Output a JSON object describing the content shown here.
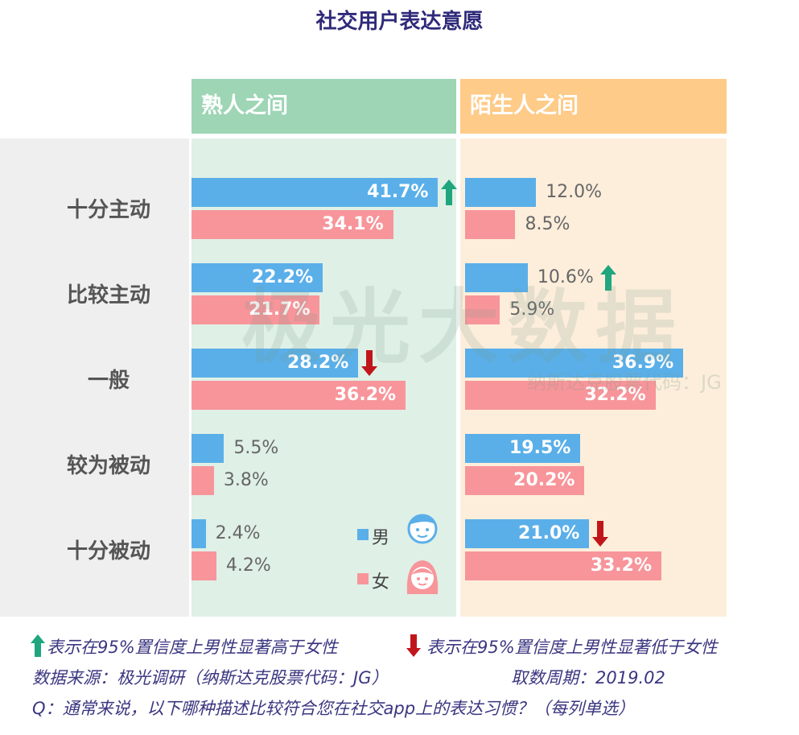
{
  "chart_data": {
    "type": "bar",
    "title": "社交用户表达意愿",
    "categories": [
      "十分主动",
      "比较主动",
      "一般",
      "较为被动",
      "十分被动"
    ],
    "panels": [
      {
        "title": "熟人之间",
        "series": [
          {
            "name": "男",
            "values": [
              41.7,
              22.2,
              28.2,
              5.5,
              2.4
            ]
          },
          {
            "name": "女",
            "values": [
              34.1,
              21.7,
              36.2,
              3.8,
              4.2
            ]
          }
        ],
        "significance": [
          "up",
          null,
          "down",
          null,
          null
        ]
      },
      {
        "title": "陌生人之间",
        "series": [
          {
            "name": "男",
            "values": [
              12.0,
              10.6,
              36.9,
              19.5,
              21.0
            ]
          },
          {
            "name": "女",
            "values": [
              8.5,
              5.9,
              32.2,
              20.2,
              33.2
            ]
          }
        ],
        "significance": [
          null,
          "up",
          null,
          null,
          "down"
        ]
      }
    ],
    "legend": [
      "男",
      "女"
    ],
    "legend_placement": "bottom-right of first panel",
    "colors": {
      "male": "#5aafe9",
      "female": "#f7959a",
      "up": "#1fa67e",
      "down": "#c0161b"
    }
  },
  "footer": {
    "up_note": "表示在95%置信度上男性显著高于女性",
    "down_note": "表示在95%置信度上男性显著低于女性",
    "source": "数据来源：极光调研（纳斯达克股票代码：JG）",
    "period": "取数周期：2019.02",
    "question": "Q：通常来说，以下哪种描述比较符合您在社交app上的表达习惯？（每列单选）"
  },
  "watermark": {
    "text": "极光大数据",
    "sub": "纳斯达克股票代码：JG"
  }
}
